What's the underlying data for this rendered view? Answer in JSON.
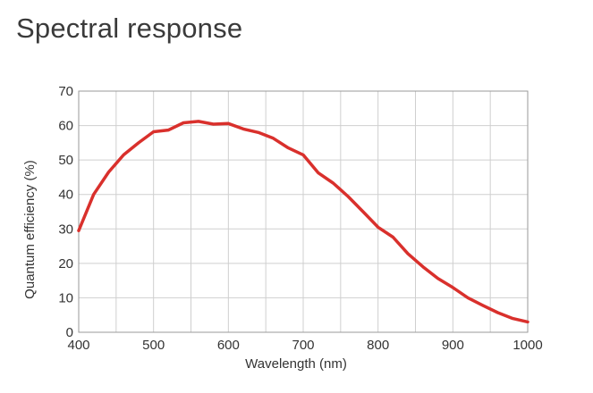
{
  "chart_data": {
    "type": "line",
    "title": "Spectral response",
    "xlabel": "Wavelength  (nm)",
    "ylabel": "Quantum efficiency (%)",
    "xlim": [
      400,
      1000
    ],
    "ylim": [
      0,
      70
    ],
    "xticks": [
      400,
      500,
      600,
      700,
      800,
      900,
      1000
    ],
    "yticks": [
      0,
      10,
      20,
      30,
      40,
      50,
      60,
      70
    ],
    "grid": true,
    "series_color": "#d9302c",
    "x": [
      400,
      420,
      440,
      460,
      480,
      500,
      520,
      540,
      560,
      580,
      600,
      620,
      640,
      660,
      680,
      700,
      720,
      740,
      760,
      780,
      800,
      820,
      840,
      860,
      880,
      900,
      920,
      940,
      960,
      980,
      1000
    ],
    "y": [
      29.5,
      40,
      46.5,
      51.5,
      55,
      58.2,
      58.7,
      60.8,
      61.2,
      60.4,
      60.6,
      59,
      58,
      56.3,
      53.5,
      51.5,
      46.3,
      43.3,
      39.4,
      35,
      30.5,
      27.6,
      22.8,
      19,
      15.6,
      13,
      10,
      7.8,
      5.7,
      4,
      3
    ]
  }
}
